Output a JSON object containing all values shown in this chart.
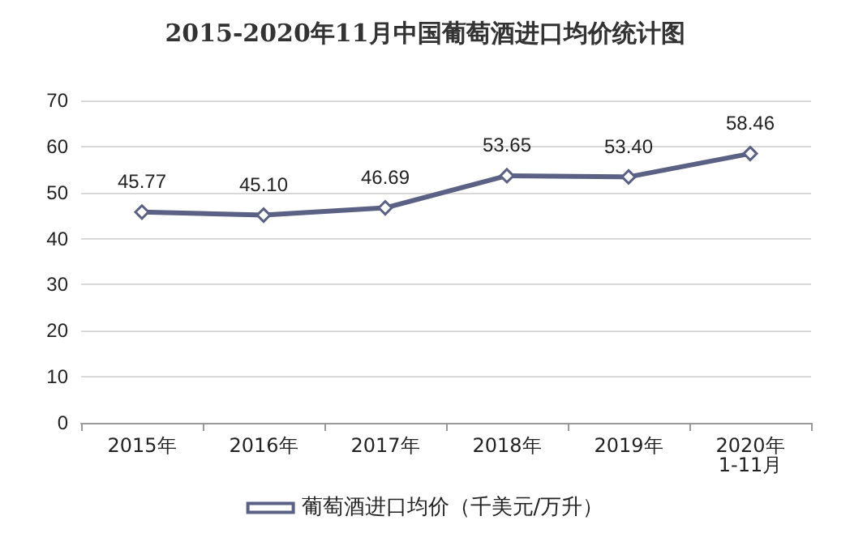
{
  "chart_data": {
    "type": "line",
    "title": "2015-2020年11月中国葡萄酒进口均价统计图",
    "categories": [
      "2015年",
      "2016年",
      "2017年",
      "2018年",
      "2019年",
      "2020年\n1-11月"
    ],
    "series": [
      {
        "name": "葡萄酒进口均价（千美元/万升）",
        "color": "#5b6185",
        "values": [
          45.77,
          45.1,
          46.69,
          53.65,
          53.4,
          58.46
        ],
        "value_labels": [
          "45.77",
          "45.10",
          "46.69",
          "53.65",
          "53.40",
          "58.46"
        ]
      }
    ],
    "ylim": [
      0,
      70
    ],
    "yticks": [
      0,
      10,
      20,
      30,
      40,
      50,
      60,
      70
    ],
    "grid": "y",
    "legend": "bottom",
    "marker": "diamond",
    "line_style": "solid"
  }
}
